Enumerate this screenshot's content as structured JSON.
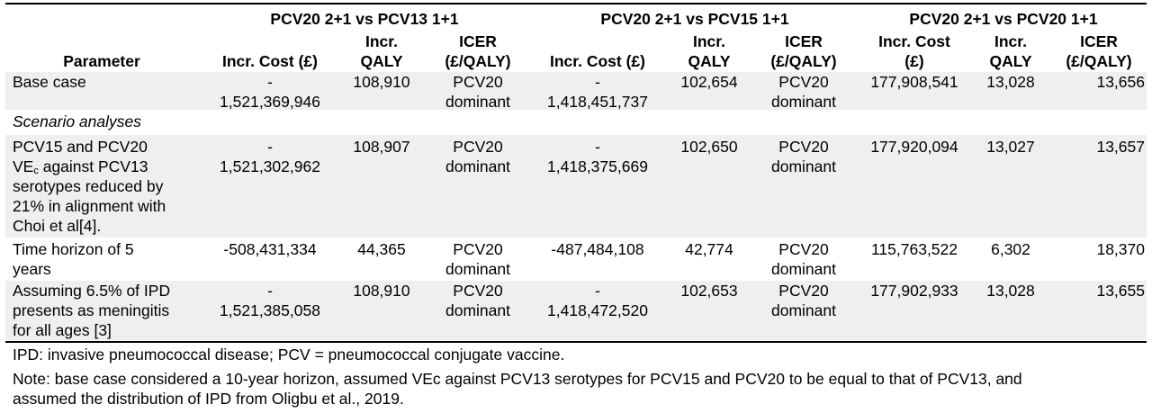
{
  "table": {
    "group_headers": [
      "PCV20 2+1 vs PCV13 1+1",
      "PCV20 2+1 vs PCV15 1+1",
      "PCV20 2+1 vs PCV20 1+1"
    ],
    "columns": {
      "parameter": "Parameter",
      "incr_cost": "Incr. Cost (£)",
      "incr_cost_a": "Incr. Cost",
      "incr_cost_b": "(£)",
      "incr_qaly_a": "Incr.",
      "incr_qaly_b": "QALY",
      "icer_a": "ICER",
      "icer_b": "(£/QALY)"
    },
    "rows": {
      "base": {
        "parameter": [
          "Base case"
        ],
        "g1": {
          "cost": [
            "-",
            "1,521,369,946"
          ],
          "qaly": "108,910",
          "icer": [
            "PCV20",
            "dominant"
          ]
        },
        "g2": {
          "cost": [
            "-",
            "1,418,451,737"
          ],
          "qaly": "102,654",
          "icer": [
            "PCV20",
            "dominant"
          ]
        },
        "g3": {
          "cost": "177,908,541",
          "qaly": "13,028",
          "icer": "13,656"
        }
      },
      "section_label": "Scenario analyses",
      "ve": {
        "parameter": [
          "PCV15 and PCV20",
          "VE",
          "c",
          " against PCV13",
          "serotypes reduced by",
          "21% in alignment with",
          "Choi et al[4]."
        ],
        "g1": {
          "cost": [
            "-",
            "1,521,302,962"
          ],
          "qaly": "108,907",
          "icer": [
            "PCV20",
            "dominant"
          ]
        },
        "g2": {
          "cost": [
            "-",
            "1,418,375,669"
          ],
          "qaly": "102,650",
          "icer": [
            "PCV20",
            "dominant"
          ]
        },
        "g3": {
          "cost": "177,920,094",
          "qaly": "13,027",
          "icer": "13,657"
        }
      },
      "horizon": {
        "parameter": [
          "Time horizon of 5",
          "years"
        ],
        "g1": {
          "cost": "-508,431,334",
          "qaly": "44,365",
          "icer": [
            "PCV20",
            "dominant"
          ]
        },
        "g2": {
          "cost": "-487,484,108",
          "qaly": "42,774",
          "icer": [
            "PCV20",
            "dominant"
          ]
        },
        "g3": {
          "cost": "115,763,522",
          "qaly": "6,302",
          "icer": "18,370"
        }
      },
      "meningitis": {
        "parameter": [
          "Assuming 6.5% of IPD",
          "presents as meningitis",
          "for all ages [3]"
        ],
        "g1": {
          "cost": [
            "-",
            "1,521,385,058"
          ],
          "qaly": "108,910",
          "icer": [
            "PCV20",
            "dominant"
          ]
        },
        "g2": {
          "cost": [
            "-",
            "1,418,472,520"
          ],
          "qaly": "102,653",
          "icer": [
            "PCV20",
            "dominant"
          ]
        },
        "g3": {
          "cost": "177,902,933",
          "qaly": "13,028",
          "icer": "13,655"
        }
      }
    },
    "footnotes": [
      "IPD: invasive pneumococcal disease; PCV = pneumococcal conjugate vaccine.",
      "Note: base case considered a 10-year horizon, assumed VEc against PCV13 serotypes for PCV15 and PCV20 to be equal to that of PCV13, and",
      "assumed the distribution of IPD from Oligbu et al., 2019."
    ]
  }
}
